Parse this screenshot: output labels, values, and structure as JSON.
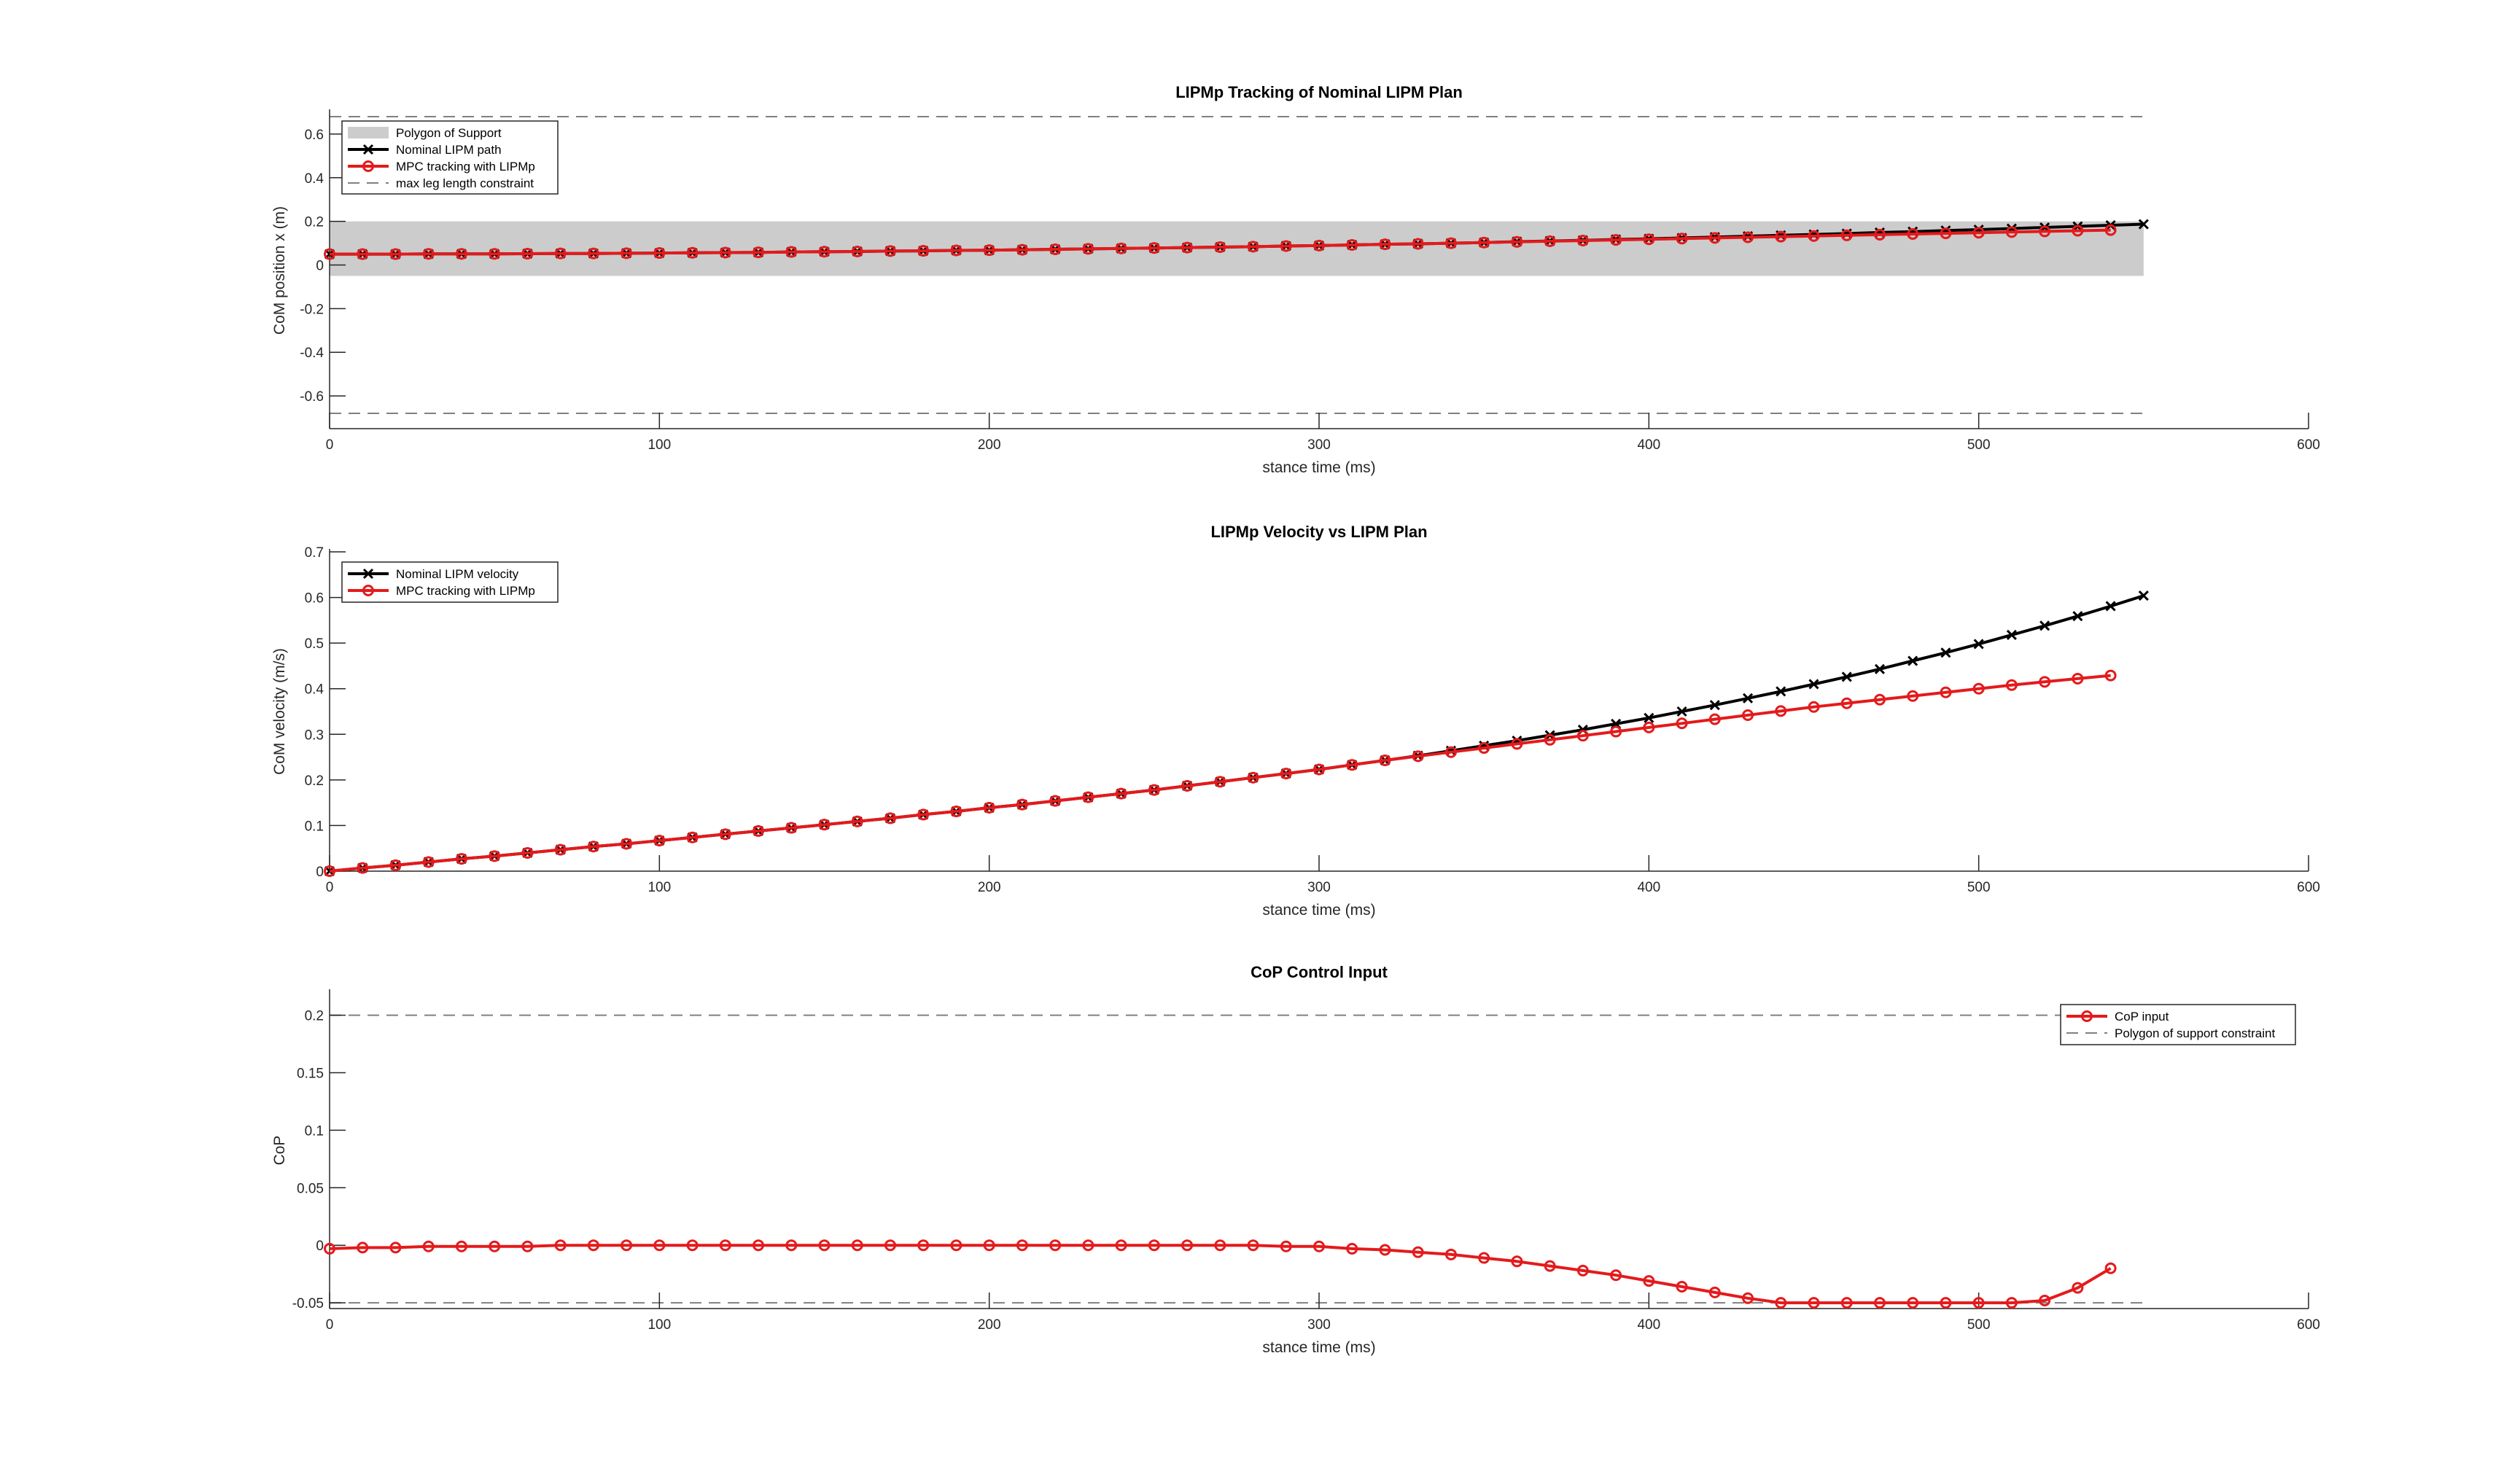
{
  "figure": {
    "colors": {
      "nominal": "#000000",
      "mpc": "#e41a1c",
      "constraint": "#808080",
      "support_fill": "#cccccc"
    },
    "icons": {
      "nominal_marker": "x-marker-icon",
      "mpc_marker": "circle-marker-icon"
    }
  },
  "chart_data": [
    {
      "type": "line",
      "title": "LIPMp Tracking of Nominal LIPM Plan",
      "xlabel": "stance time (ms)",
      "ylabel": "CoM position x (m)",
      "xlim": [
        0,
        600
      ],
      "ylim": [
        -0.75,
        0.7
      ],
      "xticks": [
        0,
        100,
        200,
        300,
        400,
        500,
        600
      ],
      "yticks": [
        -0.6,
        -0.4,
        -0.2,
        0,
        0.2,
        0.4,
        0.6
      ],
      "xtick_labels": [
        "0",
        "100",
        "200",
        "300",
        "400",
        "500",
        "600"
      ],
      "ytick_labels": [
        "-0.6",
        "-0.4",
        "-0.2",
        "0",
        "0.2",
        "0.4",
        "0.6"
      ],
      "grid": false,
      "legend_position": "top-left",
      "band": {
        "name": "Polygon of Support",
        "x": [
          0,
          550
        ],
        "y": [
          -0.05,
          0.2
        ]
      },
      "hlines": {
        "name": "max leg length constraint",
        "y": [
          0.68,
          -0.68
        ],
        "x": [
          0,
          550
        ]
      },
      "series": [
        {
          "name": "Nominal LIPM path",
          "marker": "x",
          "x": [
            0,
            10,
            20,
            30,
            40,
            50,
            60,
            70,
            80,
            90,
            100,
            110,
            120,
            130,
            140,
            150,
            160,
            170,
            180,
            190,
            200,
            210,
            220,
            230,
            240,
            250,
            260,
            270,
            280,
            290,
            300,
            310,
            320,
            330,
            340,
            350,
            360,
            370,
            380,
            390,
            400,
            410,
            420,
            430,
            440,
            450,
            460,
            470,
            480,
            490,
            500,
            510,
            520,
            530,
            540,
            550
          ],
          "y": [
            0.05,
            0.05,
            0.05,
            0.051,
            0.051,
            0.051,
            0.052,
            0.053,
            0.053,
            0.054,
            0.055,
            0.056,
            0.057,
            0.058,
            0.06,
            0.061,
            0.062,
            0.064,
            0.065,
            0.067,
            0.068,
            0.07,
            0.072,
            0.074,
            0.076,
            0.078,
            0.08,
            0.082,
            0.084,
            0.087,
            0.089,
            0.092,
            0.095,
            0.097,
            0.1,
            0.103,
            0.107,
            0.11,
            0.113,
            0.117,
            0.12,
            0.124,
            0.128,
            0.132,
            0.136,
            0.14,
            0.144,
            0.149,
            0.153,
            0.158,
            0.162,
            0.167,
            0.172,
            0.177,
            0.182,
            0.187
          ]
        },
        {
          "name": "MPC tracking with LIPMp",
          "marker": "o",
          "x": [
            0,
            10,
            20,
            30,
            40,
            50,
            60,
            70,
            80,
            90,
            100,
            110,
            120,
            130,
            140,
            150,
            160,
            170,
            180,
            190,
            200,
            210,
            220,
            230,
            240,
            250,
            260,
            270,
            280,
            290,
            300,
            310,
            320,
            330,
            340,
            350,
            360,
            370,
            380,
            390,
            400,
            410,
            420,
            430,
            440,
            450,
            460,
            470,
            480,
            490,
            500,
            510,
            520,
            530,
            540
          ],
          "y": [
            0.05,
            0.05,
            0.05,
            0.051,
            0.051,
            0.051,
            0.052,
            0.053,
            0.053,
            0.054,
            0.055,
            0.056,
            0.057,
            0.058,
            0.06,
            0.061,
            0.062,
            0.064,
            0.065,
            0.067,
            0.068,
            0.07,
            0.072,
            0.074,
            0.076,
            0.078,
            0.08,
            0.082,
            0.084,
            0.087,
            0.089,
            0.092,
            0.095,
            0.097,
            0.1,
            0.103,
            0.106,
            0.109,
            0.112,
            0.115,
            0.118,
            0.121,
            0.124,
            0.127,
            0.13,
            0.133,
            0.136,
            0.139,
            0.142,
            0.145,
            0.148,
            0.151,
            0.154,
            0.157,
            0.16
          ]
        }
      ]
    },
    {
      "type": "line",
      "title": "LIPMp Velocity vs  LIPM Plan",
      "xlabel": "stance time (ms)",
      "ylabel": "CoM velocity (m/s)",
      "xlim": [
        0,
        600
      ],
      "ylim": [
        0,
        0.7
      ],
      "xticks": [
        0,
        100,
        200,
        300,
        400,
        500,
        600
      ],
      "yticks": [
        0,
        0.1,
        0.2,
        0.3,
        0.4,
        0.5,
        0.6,
        0.7
      ],
      "xtick_labels": [
        "0",
        "100",
        "200",
        "300",
        "400",
        "500",
        "600"
      ],
      "ytick_labels": [
        "0",
        "0.1",
        "0.2",
        "0.3",
        "0.4",
        "0.5",
        "0.6",
        "0.7"
      ],
      "grid": false,
      "legend_position": "top-left",
      "series": [
        {
          "name": "Nominal LIPM velocity",
          "marker": "x",
          "x": [
            0,
            10,
            20,
            30,
            40,
            50,
            60,
            70,
            80,
            90,
            100,
            110,
            120,
            130,
            140,
            150,
            160,
            170,
            180,
            190,
            200,
            210,
            220,
            230,
            240,
            250,
            260,
            270,
            280,
            290,
            300,
            310,
            320,
            330,
            340,
            350,
            360,
            370,
            380,
            390,
            400,
            410,
            420,
            430,
            440,
            450,
            460,
            470,
            480,
            490,
            500,
            510,
            520,
            530,
            540,
            550
          ],
          "y": [
            0,
            0.007,
            0.013,
            0.02,
            0.027,
            0.033,
            0.04,
            0.047,
            0.054,
            0.06,
            0.067,
            0.074,
            0.081,
            0.088,
            0.095,
            0.102,
            0.109,
            0.116,
            0.124,
            0.131,
            0.139,
            0.146,
            0.154,
            0.162,
            0.17,
            0.178,
            0.187,
            0.196,
            0.205,
            0.214,
            0.223,
            0.233,
            0.243,
            0.253,
            0.264,
            0.275,
            0.286,
            0.298,
            0.31,
            0.323,
            0.336,
            0.35,
            0.364,
            0.379,
            0.394,
            0.41,
            0.426,
            0.443,
            0.461,
            0.479,
            0.498,
            0.518,
            0.538,
            0.559,
            0.581,
            0.604
          ]
        },
        {
          "name": "MPC tracking with LIPMp",
          "marker": "o",
          "x": [
            0,
            10,
            20,
            30,
            40,
            50,
            60,
            70,
            80,
            90,
            100,
            110,
            120,
            130,
            140,
            150,
            160,
            170,
            180,
            190,
            200,
            210,
            220,
            230,
            240,
            250,
            260,
            270,
            280,
            290,
            300,
            310,
            320,
            330,
            340,
            350,
            360,
            370,
            380,
            390,
            400,
            410,
            420,
            430,
            440,
            450,
            460,
            470,
            480,
            490,
            500,
            510,
            520,
            530,
            540
          ],
          "y": [
            0,
            0.007,
            0.013,
            0.02,
            0.027,
            0.033,
            0.04,
            0.047,
            0.054,
            0.06,
            0.067,
            0.074,
            0.081,
            0.088,
            0.095,
            0.102,
            0.109,
            0.116,
            0.124,
            0.131,
            0.139,
            0.146,
            0.154,
            0.162,
            0.17,
            0.178,
            0.187,
            0.196,
            0.205,
            0.214,
            0.223,
            0.233,
            0.243,
            0.252,
            0.261,
            0.27,
            0.279,
            0.288,
            0.297,
            0.306,
            0.315,
            0.324,
            0.333,
            0.342,
            0.351,
            0.36,
            0.368,
            0.376,
            0.384,
            0.392,
            0.4,
            0.408,
            0.415,
            0.422,
            0.429
          ]
        }
      ]
    },
    {
      "type": "line",
      "title": "CoP Control Input",
      "xlabel": "stance time (ms)",
      "ylabel": "CoP",
      "xlim": [
        0,
        600
      ],
      "ylim": [
        -0.055,
        0.22
      ],
      "xticks": [
        0,
        100,
        200,
        300,
        400,
        500,
        600
      ],
      "yticks": [
        -0.05,
        0,
        0.05,
        0.1,
        0.15,
        0.2
      ],
      "xtick_labels": [
        "0",
        "100",
        "200",
        "300",
        "400",
        "500",
        "600"
      ],
      "ytick_labels": [
        "-0.05",
        "0",
        "0.05",
        "0.1",
        "0.15",
        "0.2"
      ],
      "grid": false,
      "legend_position": "top-right",
      "hlines": {
        "name": "Polygon of support constraint",
        "y": [
          0.2,
          -0.05
        ],
        "x": [
          0,
          550
        ]
      },
      "series": [
        {
          "name": "CoP input",
          "marker": "o",
          "x": [
            0,
            10,
            20,
            30,
            40,
            50,
            60,
            70,
            80,
            90,
            100,
            110,
            120,
            130,
            140,
            150,
            160,
            170,
            180,
            190,
            200,
            210,
            220,
            230,
            240,
            250,
            260,
            270,
            280,
            290,
            300,
            310,
            320,
            330,
            340,
            350,
            360,
            370,
            380,
            390,
            400,
            410,
            420,
            430,
            440,
            450,
            460,
            470,
            480,
            490,
            500,
            510,
            520,
            530,
            540
          ],
          "y": [
            -0.003,
            -0.002,
            -0.002,
            -0.001,
            -0.001,
            -0.001,
            -0.001,
            0,
            0,
            0,
            0,
            0,
            0,
            0,
            0,
            0,
            0,
            0,
            0,
            0,
            0,
            0,
            0,
            0,
            0,
            0,
            0,
            0,
            0,
            -0.001,
            -0.001,
            -0.003,
            -0.004,
            -0.006,
            -0.008,
            -0.011,
            -0.014,
            -0.018,
            -0.022,
            -0.026,
            -0.031,
            -0.036,
            -0.041,
            -0.046,
            -0.05,
            -0.05,
            -0.05,
            -0.05,
            -0.05,
            -0.05,
            -0.05,
            -0.05,
            -0.048,
            -0.037,
            -0.02
          ]
        }
      ]
    }
  ]
}
